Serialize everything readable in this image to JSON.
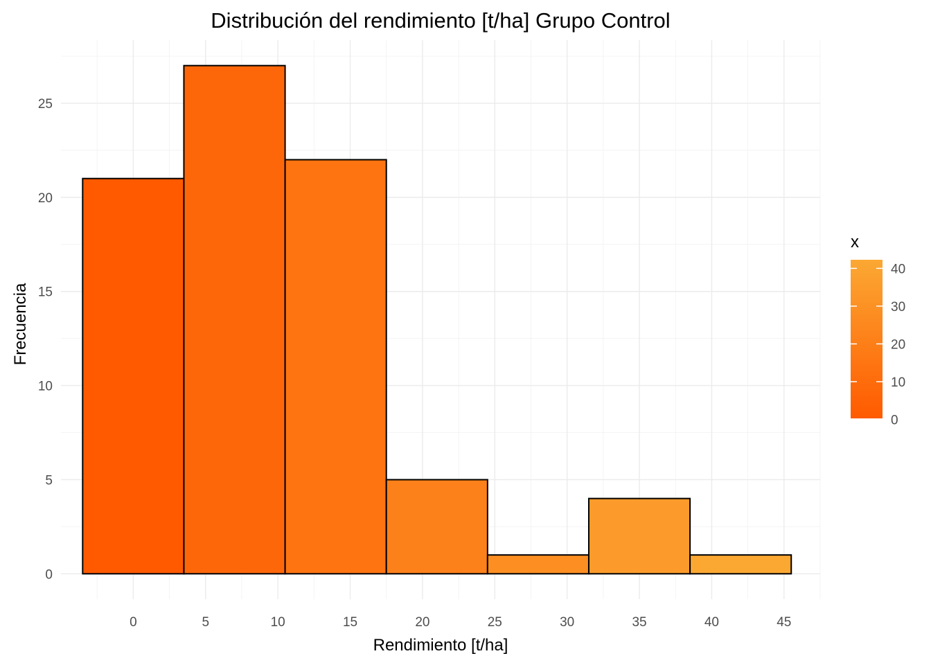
{
  "chart_data": {
    "type": "bar",
    "title": "Distribución del rendimiento [t/ha] Grupo Control",
    "xlabel": "Rendimiento [t/ha]",
    "ylabel": "Frecuencia",
    "bins": [
      {
        "center": 0,
        "width": 7,
        "count": 21
      },
      {
        "center": 7,
        "width": 7,
        "count": 27
      },
      {
        "center": 14,
        "width": 7,
        "count": 22
      },
      {
        "center": 21,
        "width": 7,
        "count": 5
      },
      {
        "center": 28,
        "width": 7,
        "count": 1
      },
      {
        "center": 35,
        "width": 7,
        "count": 4
      },
      {
        "center": 42,
        "width": 7,
        "count": 1
      }
    ],
    "xlim": [
      -5,
      47.5
    ],
    "ylim": [
      -1.35,
      28.35
    ],
    "x_ticks": [
      0,
      5,
      10,
      15,
      20,
      25,
      30,
      35,
      40,
      45
    ],
    "y_ticks": [
      0,
      5,
      10,
      15,
      20,
      25
    ],
    "grid": true,
    "fill_scale": {
      "title": "x",
      "low_color": "#FF5A00",
      "high_color": "#FBA833",
      "range": [
        0,
        42
      ],
      "ticks": [
        0,
        10,
        20,
        30,
        40
      ]
    },
    "legend_position": "right"
  }
}
